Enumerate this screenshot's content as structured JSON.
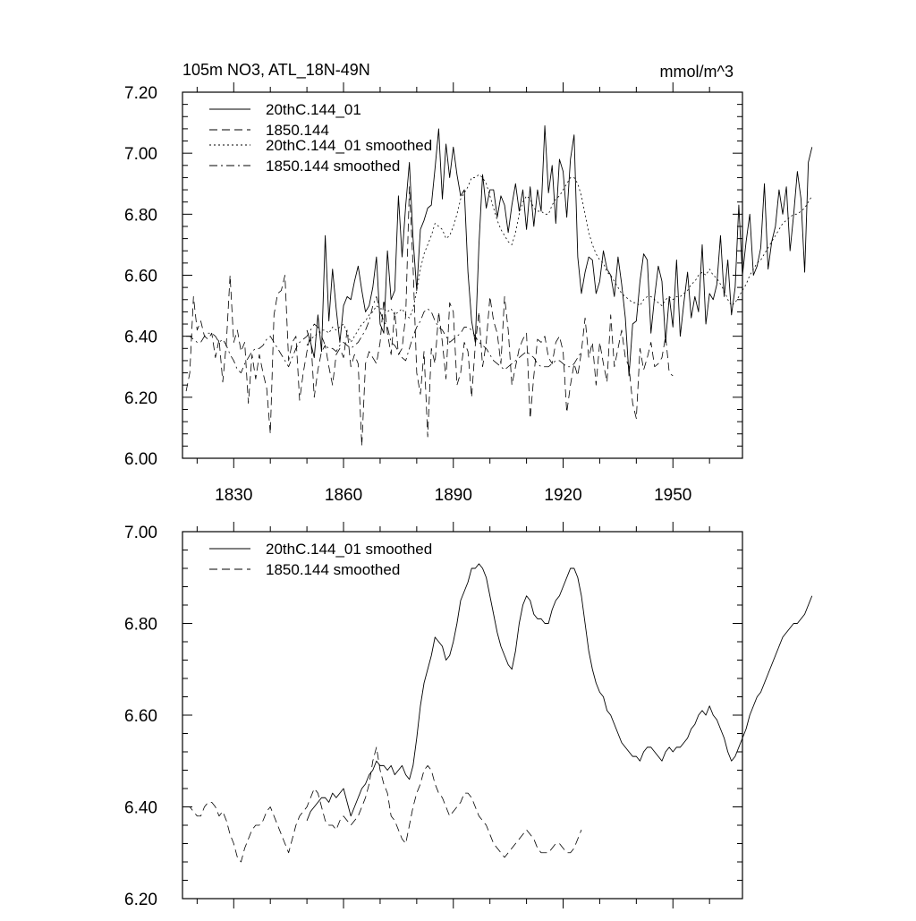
{
  "chart_data": [
    {
      "type": "line",
      "title": "105m NO3, ATL_18N-49N",
      "units": "mmol/m^3",
      "ylim": [
        6.0,
        7.2
      ],
      "yticks": [
        "6.00",
        "6.20",
        "6.40",
        "6.60",
        "6.80",
        "7.00",
        "7.20"
      ],
      "xlim": [
        1816,
        1969
      ],
      "xticks": [
        "1830",
        "1860",
        "1890",
        "1920",
        "1950"
      ],
      "legend": [
        {
          "label": "20thC.144_01",
          "style": "solid"
        },
        {
          "label": "1850.144",
          "style": "dashed"
        },
        {
          "label": "20thC.144_01 smoothed",
          "style": "dotted"
        },
        {
          "label": "1850.144 smoothed",
          "style": "dashdot"
        }
      ],
      "series": [
        {
          "name": "20thC.144_01",
          "style": "solid",
          "x_start": 1850,
          "values": [
            6.42,
            6.38,
            6.33,
            6.47,
            6.35,
            6.73,
            6.45,
            6.62,
            6.49,
            6.38,
            6.5,
            6.53,
            6.52,
            6.58,
            6.63,
            6.55,
            6.48,
            6.5,
            6.56,
            6.66,
            6.44,
            6.41,
            6.68,
            6.52,
            6.55,
            6.86,
            6.66,
            6.83,
            6.97,
            6.72,
            6.55,
            6.75,
            6.78,
            6.82,
            6.83,
            6.95,
            7.08,
            6.85,
            7.03,
            6.92,
            7.02,
            6.93,
            6.86,
            6.88,
            6.61,
            6.45,
            6.38,
            6.7,
            6.93,
            6.82,
            6.88,
            6.88,
            6.79,
            6.86,
            6.83,
            6.74,
            6.83,
            6.9,
            6.81,
            6.88,
            6.75,
            6.89,
            6.76,
            6.88,
            6.81,
            7.09,
            6.87,
            6.96,
            6.77,
            6.98,
            6.94,
            6.79,
            6.98,
            7.06,
            6.66,
            6.54,
            6.61,
            6.66,
            6.65,
            6.54,
            6.58,
            6.68,
            6.62,
            6.6,
            6.53,
            6.66,
            6.57,
            6.46,
            6.27,
            6.44,
            6.45,
            6.58,
            6.67,
            6.65,
            6.41,
            6.53,
            6.63,
            6.58,
            6.38,
            6.53,
            6.43,
            6.65,
            6.4,
            6.51,
            6.61,
            6.46,
            6.53,
            6.48,
            6.7,
            6.44,
            6.54,
            6.52,
            6.57,
            6.73,
            6.53,
            6.65,
            6.47,
            6.56,
            6.83,
            6.6,
            6.71,
            6.8,
            6.6,
            6.63,
            6.69,
            6.9,
            6.62,
            6.71,
            6.76,
            6.88,
            6.8,
            6.89,
            6.68,
            6.8,
            6.94,
            6.85,
            6.61,
            6.97,
            7.02
          ]
        },
        {
          "name": "1850.144",
          "style": "dashed",
          "x_start": 1817,
          "values": [
            6.22,
            6.28,
            6.53,
            6.42,
            6.45,
            6.4,
            6.39,
            6.41,
            6.33,
            6.39,
            6.25,
            6.38,
            6.6,
            6.38,
            6.42,
            6.35,
            6.38,
            6.18,
            6.34,
            6.26,
            6.34,
            6.28,
            6.23,
            6.08,
            6.47,
            6.54,
            6.55,
            6.6,
            6.32,
            6.38,
            6.4,
            6.19,
            6.28,
            6.35,
            6.41,
            6.2,
            6.29,
            6.35,
            6.37,
            6.3,
            6.24,
            6.34,
            6.36,
            6.33,
            6.42,
            6.3,
            6.34,
            6.31,
            6.04,
            6.31,
            6.35,
            6.33,
            6.31,
            6.38,
            6.52,
            6.41,
            6.34,
            6.48,
            6.34,
            6.36,
            6.47,
            6.89,
            6.63,
            6.28,
            6.21,
            6.35,
            6.07,
            6.36,
            6.31,
            6.48,
            6.38,
            6.26,
            6.51,
            6.48,
            6.24,
            6.28,
            6.38,
            6.35,
            6.2,
            6.37,
            6.48,
            6.3,
            6.38,
            6.53,
            6.45,
            6.41,
            6.31,
            6.53,
            6.42,
            6.24,
            6.3,
            6.36,
            6.39,
            6.41,
            6.13,
            6.27,
            6.39,
            6.38,
            6.4,
            6.33,
            6.31,
            6.38,
            6.4,
            6.35,
            6.15,
            6.24,
            6.31,
            6.27,
            6.35,
            6.46,
            6.33,
            6.38,
            6.24,
            6.38,
            6.31,
            6.25,
            6.47,
            6.3,
            6.36,
            6.42,
            6.33,
            6.3,
            6.18,
            6.13,
            6.36,
            6.29,
            6.33,
            6.38,
            6.3,
            6.31,
            6.33,
            6.4,
            6.28,
            6.27
          ]
        },
        {
          "name": "20thC.144_01 smoothed",
          "style": "dotted",
          "x_start": 1850,
          "values": [
            6.37,
            6.39,
            6.4,
            6.41,
            6.42,
            6.42,
            6.41,
            6.43,
            6.42,
            6.43,
            6.44,
            6.41,
            6.38,
            6.4,
            6.42,
            6.44,
            6.45,
            6.47,
            6.48,
            6.5,
            6.49,
            6.49,
            6.48,
            6.49,
            6.47,
            6.48,
            6.49,
            6.47,
            6.46,
            6.49,
            6.55,
            6.62,
            6.67,
            6.7,
            6.73,
            6.77,
            6.76,
            6.75,
            6.72,
            6.73,
            6.76,
            6.8,
            6.85,
            6.87,
            6.89,
            6.92,
            6.92,
            6.93,
            6.92,
            6.9,
            6.86,
            6.82,
            6.78,
            6.75,
            6.73,
            6.71,
            6.7,
            6.74,
            6.8,
            6.84,
            6.86,
            6.85,
            6.82,
            6.81,
            6.81,
            6.8,
            6.8,
            6.83,
            6.85,
            6.86,
            6.88,
            6.9,
            6.92,
            6.92,
            6.9,
            6.86,
            6.8,
            6.74,
            6.7,
            6.67,
            6.65,
            6.64,
            6.61,
            6.6,
            6.58,
            6.56,
            6.54,
            6.53,
            6.52,
            6.51,
            6.51,
            6.5,
            6.52,
            6.53,
            6.53,
            6.52,
            6.51,
            6.5,
            6.52,
            6.53,
            6.52,
            6.53,
            6.53,
            6.54,
            6.55,
            6.57,
            6.58,
            6.6,
            6.61,
            6.6,
            6.62,
            6.6,
            6.59,
            6.57,
            6.55,
            6.52,
            6.5,
            6.51,
            6.53,
            6.55,
            6.57,
            6.6,
            6.62,
            6.64,
            6.65,
            6.67,
            6.69,
            6.71,
            6.73,
            6.75,
            6.77,
            6.78,
            6.79,
            6.8,
            6.8,
            6.81,
            6.82,
            6.84,
            6.86
          ]
        },
        {
          "name": "1850.144 smoothed",
          "style": "dashdot",
          "x_start": 1817,
          "values": [
            6.4,
            6.4,
            6.39,
            6.38,
            6.38,
            6.4,
            6.41,
            6.41,
            6.4,
            6.38,
            6.39,
            6.37,
            6.34,
            6.32,
            6.29,
            6.28,
            6.31,
            6.33,
            6.35,
            6.36,
            6.36,
            6.37,
            6.39,
            6.4,
            6.38,
            6.36,
            6.34,
            6.32,
            6.3,
            6.33,
            6.36,
            6.38,
            6.39,
            6.4,
            6.42,
            6.44,
            6.43,
            6.4,
            6.37,
            6.36,
            6.36,
            6.35,
            6.37,
            6.38,
            6.37,
            6.36,
            6.37,
            6.38,
            6.4,
            6.42,
            6.45,
            6.5,
            6.53,
            6.48,
            6.45,
            6.43,
            6.38,
            6.37,
            6.35,
            6.33,
            6.32,
            6.36,
            6.4,
            6.43,
            6.45,
            6.48,
            6.49,
            6.48,
            6.45,
            6.43,
            6.42,
            6.4,
            6.38,
            6.39,
            6.4,
            6.41,
            6.43,
            6.43,
            6.42,
            6.4,
            6.38,
            6.37,
            6.36,
            6.34,
            6.32,
            6.31,
            6.3,
            6.29,
            6.3,
            6.31,
            6.32,
            6.33,
            6.34,
            6.35,
            6.34,
            6.33,
            6.31,
            6.3,
            6.3,
            6.3,
            6.31,
            6.32,
            6.32,
            6.31,
            6.3,
            6.3,
            6.31,
            6.33,
            6.35
          ]
        }
      ]
    },
    {
      "type": "line",
      "title": "",
      "ylim": [
        6.2,
        7.0
      ],
      "yticks": [
        "6.20",
        "6.40",
        "6.60",
        "6.80",
        "7.00"
      ],
      "xlim": [
        1816,
        1969
      ],
      "legend": [
        {
          "label": "20thC.144_01 smoothed",
          "style": "solid"
        },
        {
          "label": "1850.144 smoothed",
          "style": "dashed"
        }
      ],
      "series": [
        {
          "name": "20thC.144_01 smoothed",
          "style": "solid",
          "x_start": 1850,
          "values": [
            6.37,
            6.39,
            6.4,
            6.41,
            6.42,
            6.42,
            6.41,
            6.43,
            6.42,
            6.43,
            6.44,
            6.41,
            6.38,
            6.4,
            6.42,
            6.44,
            6.45,
            6.47,
            6.48,
            6.5,
            6.49,
            6.49,
            6.48,
            6.49,
            6.47,
            6.48,
            6.49,
            6.47,
            6.46,
            6.49,
            6.55,
            6.62,
            6.67,
            6.7,
            6.73,
            6.77,
            6.76,
            6.75,
            6.72,
            6.73,
            6.76,
            6.8,
            6.85,
            6.87,
            6.89,
            6.92,
            6.92,
            6.93,
            6.92,
            6.9,
            6.86,
            6.82,
            6.78,
            6.75,
            6.73,
            6.71,
            6.7,
            6.74,
            6.8,
            6.84,
            6.86,
            6.85,
            6.82,
            6.81,
            6.81,
            6.8,
            6.8,
            6.83,
            6.85,
            6.86,
            6.88,
            6.9,
            6.92,
            6.92,
            6.9,
            6.86,
            6.8,
            6.74,
            6.7,
            6.67,
            6.65,
            6.64,
            6.61,
            6.6,
            6.58,
            6.56,
            6.54,
            6.53,
            6.52,
            6.51,
            6.51,
            6.5,
            6.52,
            6.53,
            6.53,
            6.52,
            6.51,
            6.5,
            6.52,
            6.53,
            6.52,
            6.53,
            6.53,
            6.54,
            6.55,
            6.57,
            6.58,
            6.6,
            6.61,
            6.6,
            6.62,
            6.6,
            6.59,
            6.57,
            6.55,
            6.52,
            6.5,
            6.51,
            6.53,
            6.55,
            6.57,
            6.6,
            6.62,
            6.64,
            6.65,
            6.67,
            6.69,
            6.71,
            6.73,
            6.75,
            6.77,
            6.78,
            6.79,
            6.8,
            6.8,
            6.81,
            6.82,
            6.84,
            6.86
          ]
        },
        {
          "name": "1850.144 smoothed",
          "style": "dashed",
          "x_start": 1817,
          "values": [
            6.4,
            6.4,
            6.39,
            6.38,
            6.38,
            6.4,
            6.41,
            6.41,
            6.4,
            6.38,
            6.39,
            6.37,
            6.34,
            6.32,
            6.29,
            6.28,
            6.31,
            6.33,
            6.35,
            6.36,
            6.36,
            6.37,
            6.39,
            6.4,
            6.38,
            6.36,
            6.34,
            6.32,
            6.3,
            6.33,
            6.36,
            6.38,
            6.39,
            6.4,
            6.42,
            6.44,
            6.43,
            6.4,
            6.37,
            6.36,
            6.36,
            6.35,
            6.37,
            6.38,
            6.37,
            6.36,
            6.37,
            6.38,
            6.4,
            6.42,
            6.45,
            6.5,
            6.53,
            6.48,
            6.45,
            6.43,
            6.38,
            6.37,
            6.35,
            6.33,
            6.32,
            6.36,
            6.4,
            6.43,
            6.45,
            6.48,
            6.49,
            6.48,
            6.45,
            6.43,
            6.42,
            6.4,
            6.38,
            6.39,
            6.4,
            6.41,
            6.43,
            6.43,
            6.42,
            6.4,
            6.38,
            6.37,
            6.36,
            6.34,
            6.32,
            6.31,
            6.3,
            6.29,
            6.3,
            6.31,
            6.32,
            6.33,
            6.34,
            6.35,
            6.34,
            6.33,
            6.31,
            6.3,
            6.3,
            6.3,
            6.31,
            6.32,
            6.32,
            6.31,
            6.3,
            6.3,
            6.31,
            6.33,
            6.35
          ]
        }
      ]
    }
  ]
}
